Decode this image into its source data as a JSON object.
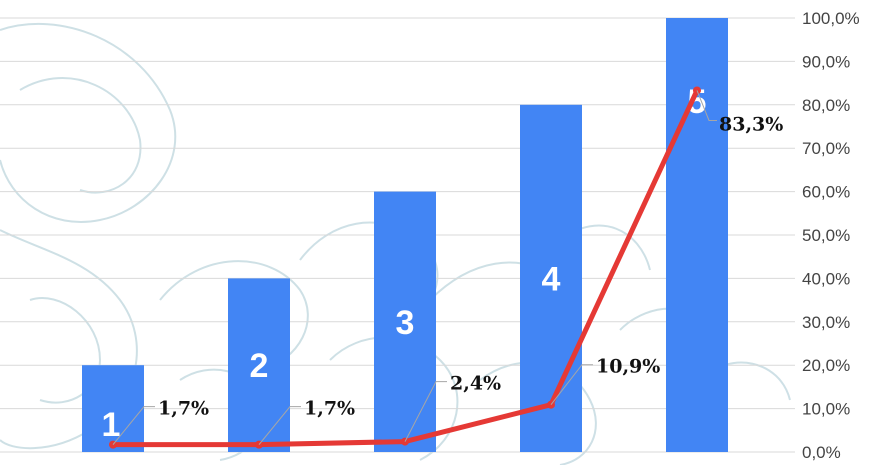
{
  "chart_data": {
    "type": "bar",
    "categories": [
      "1",
      "2",
      "3",
      "4",
      "5"
    ],
    "series": [
      {
        "type": "bar",
        "values": [
          20,
          40,
          60,
          80,
          100
        ],
        "labels": [
          "1",
          "2",
          "3",
          "4",
          "5"
        ]
      },
      {
        "type": "line",
        "values": [
          1.7,
          1.7,
          2.4,
          10.9,
          83.3
        ],
        "labels": [
          "1,7%",
          "1,7%",
          "2,4%",
          "10,9%",
          "83,3%"
        ]
      }
    ],
    "y_axis": {
      "position": "right",
      "ylim": [
        0,
        100
      ],
      "ticks": [
        0,
        10,
        20,
        30,
        40,
        50,
        60,
        70,
        80,
        90,
        100
      ],
      "tick_labels": [
        "0,0%",
        "10,0%",
        "20,0%",
        "30,0%",
        "40,0%",
        "50,0%",
        "60,0%",
        "70,0%",
        "80,0%",
        "90,0%",
        "100,0%"
      ]
    },
    "grid": true,
    "legend": "none",
    "colors": {
      "bar": "#4285f4",
      "line": "#e53935",
      "gridline": "#d9d9d9",
      "leader_line": "#a6a6a6",
      "background_decoration": "#c9dde3"
    }
  }
}
